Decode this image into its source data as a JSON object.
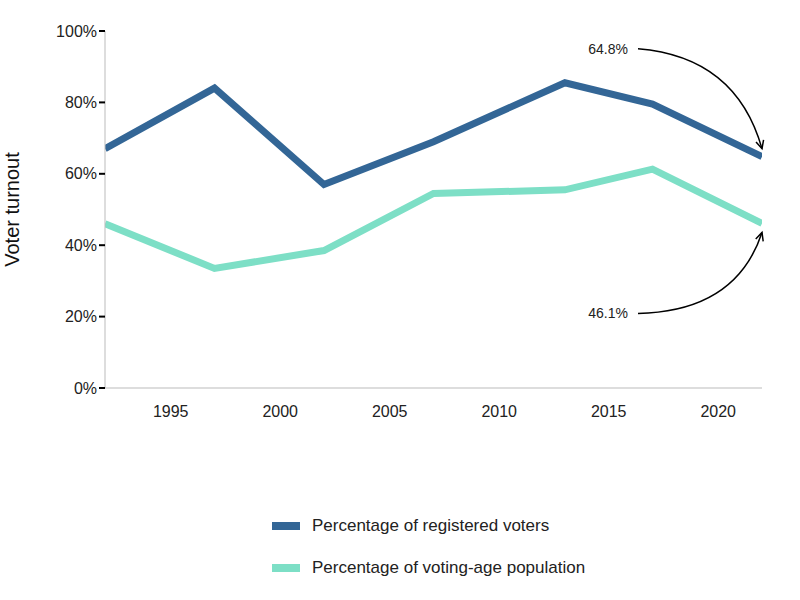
{
  "chart_data": {
    "type": "line",
    "x": [
      1992,
      1997,
      2002,
      2007,
      2013,
      2017,
      2022
    ],
    "xlim": [
      1992,
      2022
    ],
    "xticks": [
      1995,
      2000,
      2005,
      2010,
      2015,
      2020
    ],
    "ylim": [
      0,
      100
    ],
    "yticks": [
      {
        "value": 0,
        "label": "0%"
      },
      {
        "value": 20,
        "label": "20%"
      },
      {
        "value": 40,
        "label": "40%"
      },
      {
        "value": 60,
        "label": "60%"
      },
      {
        "value": 80,
        "label": "80%"
      },
      {
        "value": 100,
        "label": "100%"
      }
    ],
    "y_label": "Voter turnout",
    "series": [
      {
        "name": "Percentage of registered voters",
        "color": "#336696",
        "values": [
          67.0,
          84.0,
          57.0,
          69.0,
          85.5,
          79.5,
          64.8
        ]
      },
      {
        "name": "Percentage of voting-age population",
        "color": "#7ddfc6",
        "values": [
          46.0,
          33.5,
          38.5,
          54.5,
          55.5,
          61.3,
          46.1
        ]
      }
    ],
    "annotations": [
      {
        "text": "64.8%",
        "x": 2022,
        "y": 64.8
      },
      {
        "text": "46.1%",
        "x": 2022,
        "y": 46.1
      }
    ],
    "grid": false,
    "legend": "bottom"
  }
}
